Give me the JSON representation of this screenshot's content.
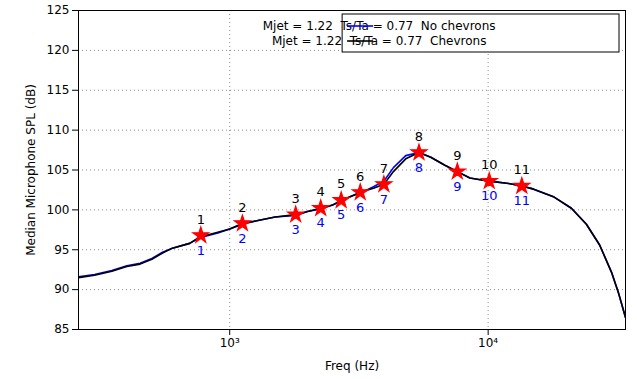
{
  "chart_data": {
    "type": "line",
    "x_label": "Freq (Hz)",
    "y_label": "Median Microphone SPL (dB)",
    "log": "x",
    "grid": true,
    "legend": "top-right",
    "xlim": [
      260,
      34000
    ],
    "xticks": [
      {
        "value": 1000,
        "label": "10³"
      },
      {
        "value": 10000,
        "label": "10⁴"
      }
    ],
    "ylim": [
      85,
      125
    ],
    "yticks": [
      85,
      90,
      95,
      100,
      105,
      110,
      115,
      120,
      125
    ],
    "x": [
      260,
      300,
      350,
      400,
      450,
      500,
      550,
      600,
      700,
      766,
      900,
      1000,
      1120,
      1300,
      1500,
      1800,
      2000,
      2250,
      2500,
      2700,
      3000,
      3200,
      3600,
      3950,
      4300,
      4800,
      5400,
      6000,
      6800,
      7600,
      8500,
      10100,
      12000,
      13500,
      15000,
      18000,
      21000,
      24000,
      27000,
      30000,
      32000,
      34000
    ],
    "series": [
      {
        "name": "Mjet = 1.22  Ts/Ta = 0.77  No chevrons",
        "color": "#0000ff",
        "values": [
          91.6,
          91.9,
          92.4,
          93.0,
          93.3,
          93.9,
          94.7,
          95.2,
          95.8,
          96.5,
          97.1,
          97.6,
          98.2,
          98.7,
          99.1,
          99.3,
          99.8,
          100.1,
          100.6,
          101.1,
          101.8,
          102.1,
          102.9,
          103.6,
          105.3,
          106.8,
          107.2,
          106.6,
          105.6,
          104.8,
          104.0,
          103.6,
          103.3,
          103.0,
          102.6,
          101.6,
          100.2,
          98.2,
          95.6,
          92.2,
          89.5,
          86.5
        ],
        "point_labels": [
          "1",
          "2",
          "3",
          "4",
          "5",
          "6",
          "7",
          "8",
          "9",
          "10",
          "11"
        ]
      },
      {
        "name": "Mjet = 1.22  Ts/Ta = 0.77  Chevrons",
        "color": "#000000",
        "values": [
          91.5,
          91.8,
          92.3,
          92.9,
          93.2,
          93.8,
          94.6,
          95.2,
          95.8,
          96.6,
          97.2,
          97.6,
          98.3,
          98.7,
          99.1,
          99.4,
          99.8,
          100.2,
          100.6,
          101.2,
          101.8,
          102.2,
          102.7,
          103.2,
          104.8,
          106.4,
          107.2,
          106.6,
          105.6,
          104.8,
          104.0,
          103.6,
          103.3,
          103.0,
          102.6,
          101.6,
          100.2,
          98.2,
          95.6,
          92.2,
          89.5,
          86.5
        ],
        "point_labels": [
          "1",
          "2",
          "3",
          "4",
          "5",
          "6",
          "7",
          "8",
          "9",
          "10",
          "11"
        ]
      }
    ],
    "markers": {
      "x": [
        773,
        1120,
        1800,
        2250,
        2700,
        3200,
        3950,
        5400,
        7600,
        10100,
        13500
      ],
      "y": [
        96.8,
        98.3,
        99.4,
        100.2,
        101.2,
        102.2,
        103.2,
        107.2,
        104.8,
        103.6,
        103.0
      ],
      "color": "#ff0000",
      "marker": "star"
    }
  }
}
